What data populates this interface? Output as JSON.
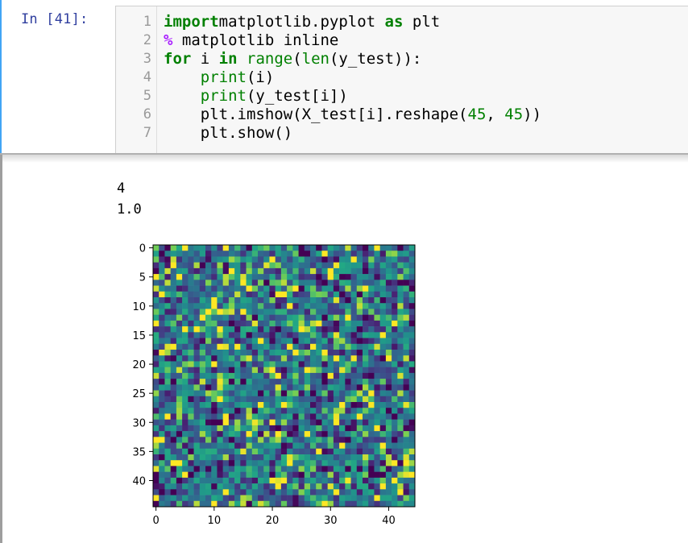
{
  "cell": {
    "prompt": "In [41]:",
    "lines": [
      {
        "num": "1",
        "tokens": [
          [
            "kw",
            "import"
          ],
          [
            "",
            "matplotlib.pyplot "
          ],
          [
            "kw",
            "as"
          ],
          [
            "",
            " plt"
          ]
        ]
      },
      {
        "num": "2",
        "tokens": [
          [
            "mg",
            "%"
          ],
          [
            "",
            " matplotlib inline"
          ]
        ]
      },
      {
        "num": "3",
        "tokens": [
          [
            "kw",
            "for"
          ],
          [
            "",
            " i "
          ],
          [
            "kw",
            "in"
          ],
          [
            "",
            " "
          ],
          [
            "bi",
            "range"
          ],
          [
            "",
            "("
          ],
          [
            "bi",
            "len"
          ],
          [
            "",
            "(y_test)):"
          ]
        ]
      },
      {
        "num": "4",
        "tokens": [
          [
            "",
            "    "
          ],
          [
            "bi",
            "print"
          ],
          [
            "",
            "(i)"
          ]
        ]
      },
      {
        "num": "5",
        "tokens": [
          [
            "",
            "    "
          ],
          [
            "bi",
            "print"
          ],
          [
            "",
            "(y_test[i])"
          ]
        ]
      },
      {
        "num": "6",
        "tokens": [
          [
            "",
            "    plt.imshow(X_test[i].reshape("
          ],
          [
            "num",
            "45"
          ],
          [
            "",
            ", "
          ],
          [
            "num",
            "45"
          ],
          [
            "",
            "))"
          ]
        ]
      },
      {
        "num": "7",
        "tokens": [
          [
            "",
            "    plt.show()"
          ]
        ]
      }
    ]
  },
  "output": {
    "line1": "4",
    "line2": "1.0"
  },
  "chart_data": {
    "type": "heatmap",
    "rows": 45,
    "cols": 45,
    "colormap": "viridis",
    "value_range": [
      0,
      1
    ],
    "seed": 41,
    "x_ticks": [
      "0",
      "10",
      "20",
      "30",
      "40"
    ],
    "y_ticks": [
      "0",
      "5",
      "10",
      "15",
      "20",
      "25",
      "30",
      "35",
      "40"
    ],
    "x_tick_values": [
      0,
      10,
      20,
      30,
      40
    ],
    "y_tick_values": [
      0,
      5,
      10,
      15,
      20,
      25,
      30,
      35,
      40
    ],
    "title": "",
    "xlabel": "",
    "ylabel": ""
  }
}
